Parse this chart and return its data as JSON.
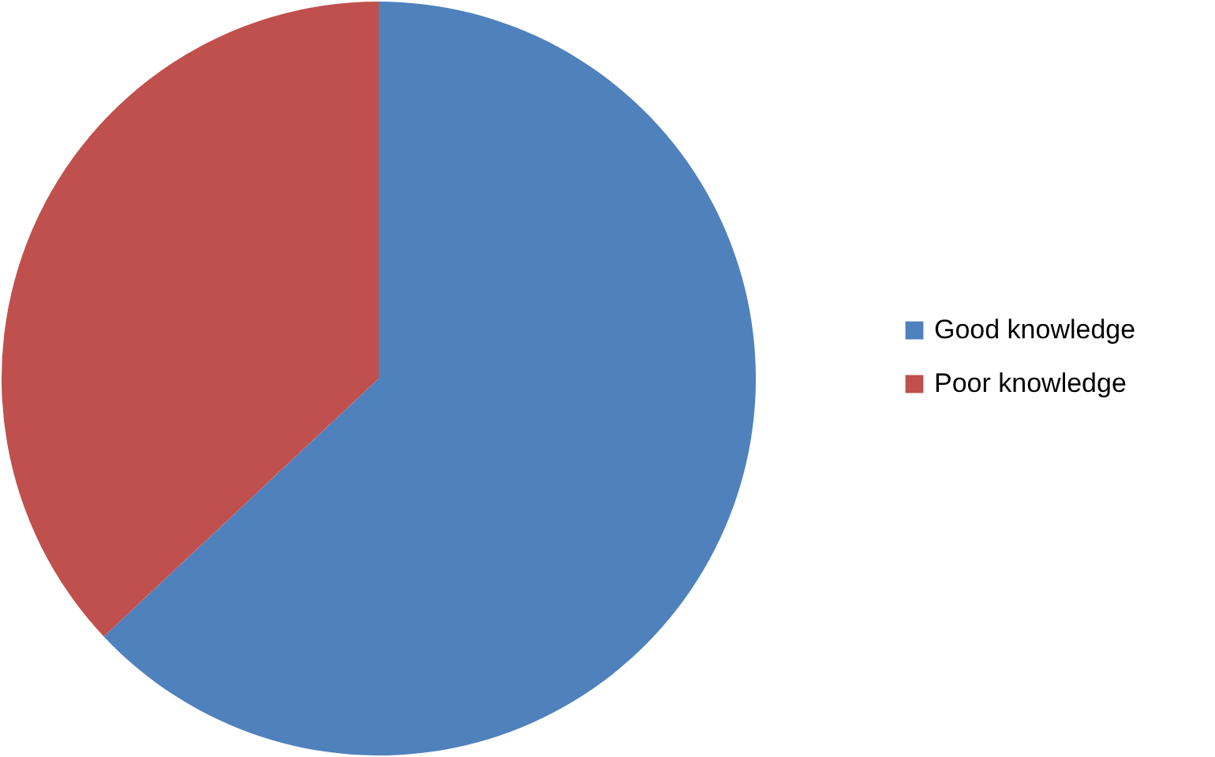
{
  "chart_data": {
    "type": "pie",
    "categories": [
      "Good knowledge",
      "Poor knowledge"
    ],
    "values": [
      63,
      37
    ],
    "colors": [
      "#4f81bd",
      "#c0504d"
    ],
    "legend": "right"
  }
}
